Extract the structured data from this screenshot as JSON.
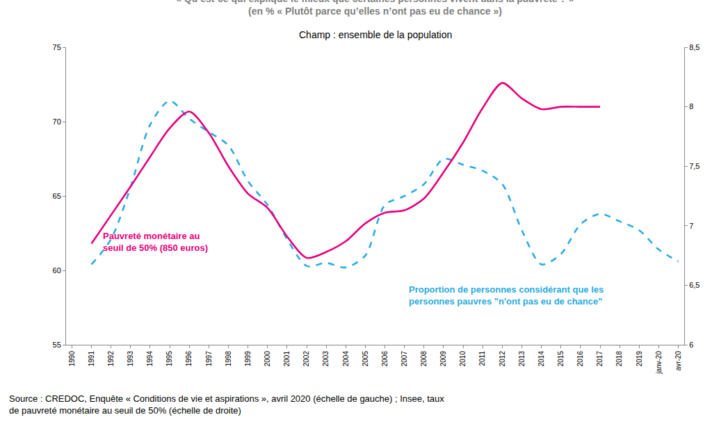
{
  "chart_data": {
    "type": "line",
    "title": "« Qu’est-ce qui explique le mieux que certaines personnes vivent dans la pauvreté ? »",
    "subtitle": "(en % « Plutôt parce qu’elles n’ont pas eu de chance »)",
    "annotations": [
      "Champ : ensemble de la population"
    ],
    "caption": "Source : CREDOC, Enquête « Conditions de vie et aspirations », avril 2020 (échelle de gauche) ; Insee, taux de pauvreté monétaire au seuil de 50% (échelle de droite)",
    "categories": [
      "1990",
      "1991",
      "1992",
      "1993",
      "1994",
      "1995",
      "1996",
      "1997",
      "1998",
      "1999",
      "2000",
      "2001",
      "2002",
      "2003",
      "2004",
      "2005",
      "2006",
      "2007",
      "2008",
      "2009",
      "2010",
      "2011",
      "2012",
      "2013",
      "2014",
      "2015",
      "2016",
      "2017",
      "2018",
      "2019",
      "janv-20",
      "avr-20"
    ],
    "series": [
      {
        "name": "Pauvreté monétaire au seuil de 50% (850 euros)",
        "color": "#e6007e",
        "line_style": "solid",
        "axis": "y2",
        "values": [
          null,
          6.85,
          7.09,
          7.33,
          7.58,
          7.82,
          7.96,
          7.78,
          7.5,
          7.27,
          7.15,
          6.91,
          6.73,
          6.78,
          6.87,
          7.02,
          7.11,
          7.13,
          7.23,
          7.45,
          7.7,
          7.99,
          8.2,
          8.07,
          7.98,
          8.0,
          8.0,
          8.0,
          null,
          null,
          null,
          null
        ]
      },
      {
        "name": "Proportion de personnes considérant que les personnes pauvres \"n'ont pas eu de chance\"",
        "color": "#29abe2",
        "line_style": "dashed",
        "values": [
          null,
          60.4,
          62.1,
          65.6,
          69.8,
          71.4,
          70.2,
          69.3,
          68.4,
          66.0,
          64.4,
          62.1,
          60.3,
          60.5,
          60.2,
          61.0,
          64.4,
          65.0,
          65.8,
          67.5,
          67.1,
          66.7,
          65.8,
          62.7,
          60.4,
          61.1,
          63.1,
          63.8,
          63.3,
          62.7,
          61.4,
          60.6
        ]
      }
    ],
    "ylim": [
      55,
      75
    ],
    "yticks": [
      55,
      60,
      65,
      70,
      75
    ],
    "y2lim": [
      6,
      8.5
    ],
    "y2ticks": [
      6,
      {
        "value": 6.5,
        "label": "6,5"
      },
      7,
      {
        "value": 7.5,
        "label": "7,5"
      },
      8,
      {
        "value": 8.5,
        "label": "8,5"
      }
    ],
    "grid": false
  }
}
